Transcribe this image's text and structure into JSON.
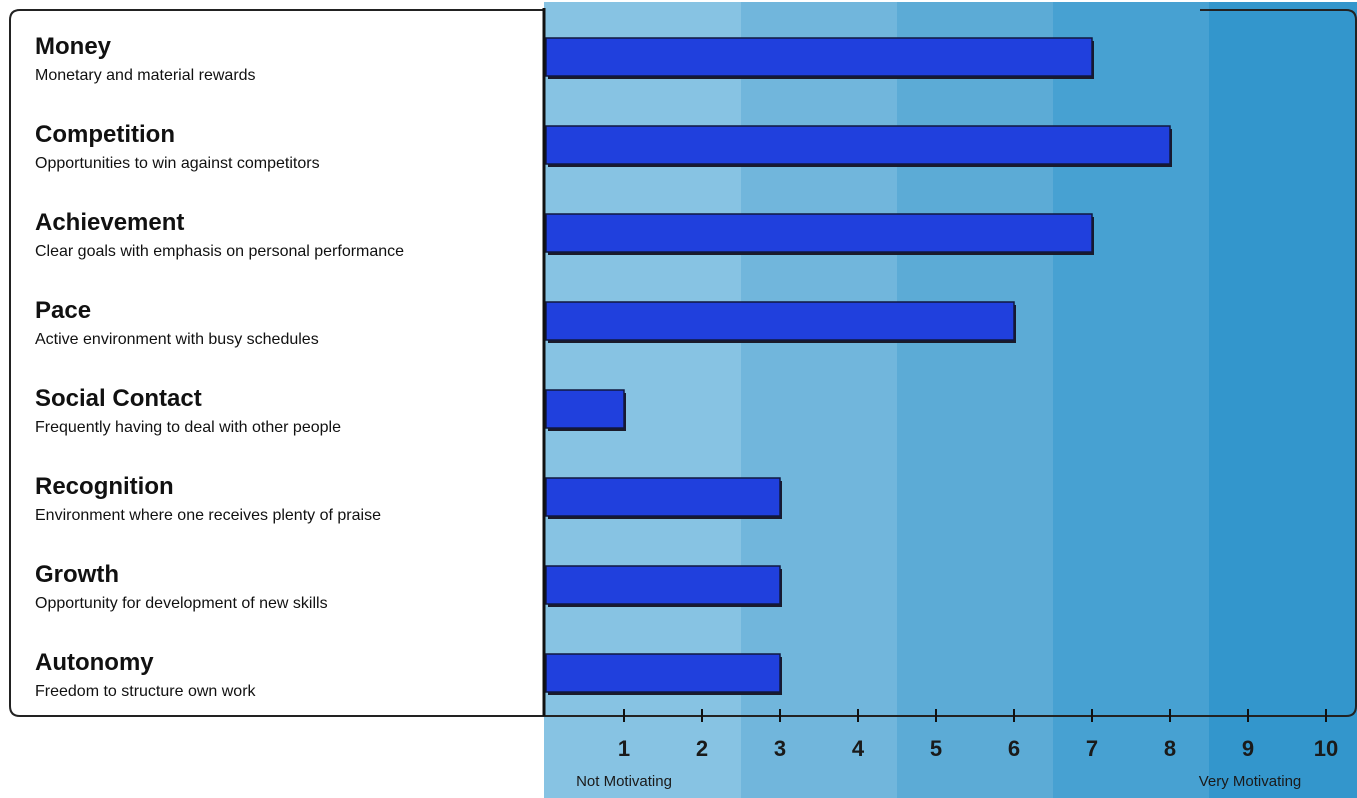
{
  "chart_data": {
    "type": "bar",
    "orientation": "horizontal",
    "categories": [
      "Money",
      "Competition",
      "Achievement",
      "Pace",
      "Social Contact",
      "Recognition",
      "Growth",
      "Autonomy"
    ],
    "descriptions": [
      "Monetary and material rewards",
      "Opportunities to win against competitors",
      "Clear goals with emphasis on personal performance",
      "Active environment with busy schedules",
      "Frequently having to deal with other people",
      "Environment where one receives plenty of praise",
      "Opportunity for development of new skills",
      "Freedom to structure own work"
    ],
    "values": [
      7,
      8,
      7,
      6,
      1,
      3,
      3,
      3
    ],
    "xlim": [
      0,
      10
    ],
    "ticks": [
      1,
      2,
      3,
      4,
      5,
      6,
      7,
      8,
      9,
      10
    ],
    "tick_labels": [
      "1",
      "2",
      "3",
      "4",
      "5",
      "6",
      "7",
      "8",
      "9",
      "10"
    ],
    "scale_low_label": "Not Motivating",
    "scale_high_label": "Very Motivating",
    "grid": false,
    "colors": {
      "bar": "#2040dd",
      "bar_shadow": "#1a1a2a",
      "bands": [
        "#87c3e3",
        "#71b6dc",
        "#5cabd6",
        "#47a1d2",
        "#3396cc"
      ],
      "frame": "#222222"
    }
  }
}
